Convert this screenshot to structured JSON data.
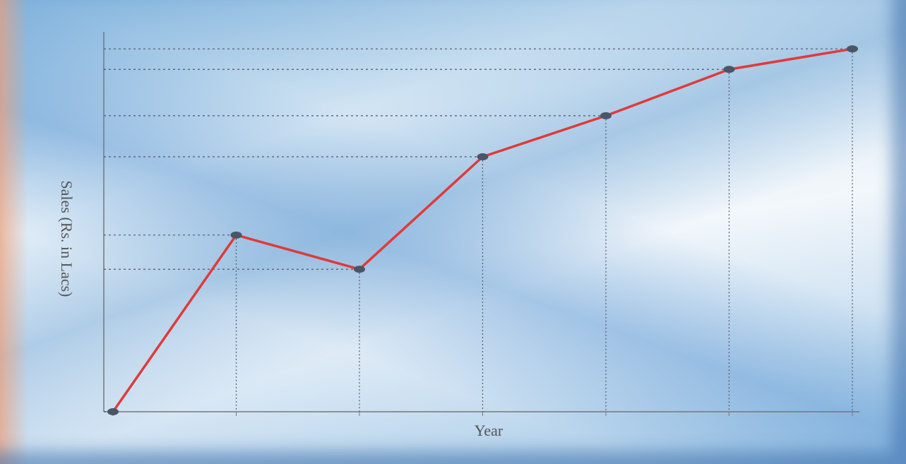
{
  "chart_data": {
    "type": "line",
    "y_label": "Sales (Rs. in Lacs)",
    "x_label": "Year",
    "categories": [
      null,
      null,
      null,
      null,
      null,
      null,
      null
    ],
    "series": [
      {
        "color": "#e03a3a",
        "values": [
          0,
          46.5,
          37.5,
          67.1,
          77.9,
          90.1,
          95.5
        ]
      }
    ],
    "ylim": [
      0,
      100
    ]
  }
}
